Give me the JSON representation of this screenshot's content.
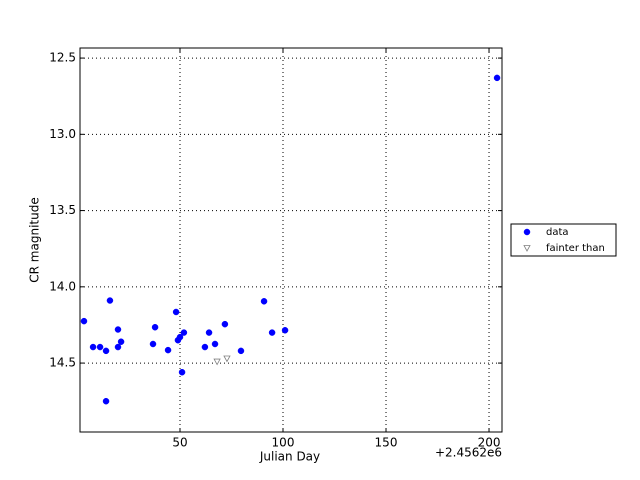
{
  "chart_data": {
    "type": "scatter",
    "x_label": "Julian Day",
    "y_label": "CR magnitude",
    "offset_text": "+2.4562e6",
    "xlim": [
      1.46,
      206.3
    ],
    "ylim": [
      14.952,
      12.434
    ],
    "xticks": [
      50,
      100,
      150,
      200
    ],
    "yticks": [
      12.5,
      {
        "value": 13,
        "label": "13.0"
      },
      13.5,
      {
        "value": 14,
        "label": "14.0"
      },
      14.5
    ],
    "grid": true,
    "legend": "right",
    "series": [
      {
        "name": "data",
        "color": "#0000ff",
        "marker": "circle",
        "x": [
          3.4,
          7.8,
          11.2,
          14.1,
          14.1,
          16.0,
          19.9,
          19.9,
          21.4,
          36.9,
          37.9,
          44.2,
          48.1,
          49.0,
          50.0,
          51.0,
          51.9,
          62.1,
          64.1,
          67.0,
          71.8,
          79.6,
          90.8,
          94.7,
          101.0,
          203.9
        ],
        "values": [
          14.225,
          14.395,
          14.395,
          14.42,
          14.75,
          14.09,
          14.28,
          14.395,
          14.36,
          14.375,
          14.265,
          14.415,
          14.165,
          14.35,
          14.33,
          14.56,
          14.3,
          14.395,
          14.3,
          14.375,
          14.245,
          14.42,
          14.095,
          14.3,
          14.285,
          12.63
        ]
      },
      {
        "name": "fainter than",
        "color": "#808080",
        "marker": "triangle-down",
        "x": [
          68.0,
          72.8
        ],
        "values": [
          14.49,
          14.47
        ]
      }
    ]
  }
}
